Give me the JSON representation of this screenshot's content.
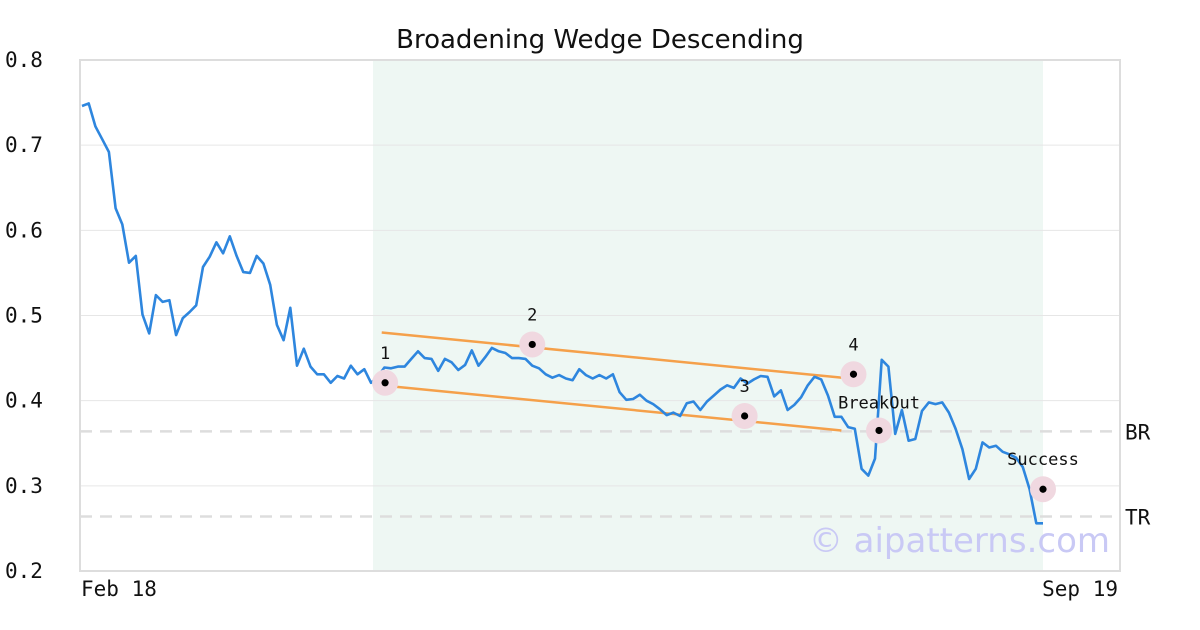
{
  "chart_data": {
    "type": "line",
    "title": "Broadening Wedge Descending",
    "xlabel": "",
    "ylabel": "",
    "ylim": [
      0.2,
      0.8
    ],
    "y_ticks": [
      "0.2",
      "0.3",
      "0.4",
      "0.5",
      "0.6",
      "0.7",
      "0.8"
    ],
    "x_tick_labels": [
      "Feb 18",
      "Sep 19"
    ],
    "grid": true,
    "colors": {
      "line": "#2e86de",
      "trend": "#f5a04a",
      "pattern_band": "#eef7f3",
      "marker_halo": "#f0d8e0",
      "level": "#dddddd",
      "watermark": "#c9c9f5"
    },
    "series": [
      {
        "values": [
          0.746,
          0.749,
          0.722,
          0.707,
          0.692,
          0.626,
          0.607,
          0.562,
          0.57,
          0.501,
          0.479,
          0.524,
          0.516,
          0.518,
          0.477,
          0.497,
          0.504,
          0.512,
          0.557,
          0.569,
          0.586,
          0.573,
          0.593,
          0.57,
          0.551,
          0.55,
          0.57,
          0.561,
          0.536,
          0.489,
          0.471,
          0.509,
          0.441,
          0.461,
          0.44,
          0.431,
          0.431,
          0.421,
          0.429,
          0.426,
          0.441,
          0.431,
          0.437,
          0.421,
          0.428,
          0.439,
          0.438,
          0.44,
          0.44,
          0.449,
          0.458,
          0.45,
          0.449,
          0.435,
          0.449,
          0.445,
          0.436,
          0.442,
          0.459,
          0.441,
          0.451,
          0.462,
          0.458,
          0.456,
          0.45,
          0.45,
          0.449,
          0.441,
          0.438,
          0.431,
          0.427,
          0.43,
          0.426,
          0.424,
          0.437,
          0.43,
          0.426,
          0.43,
          0.426,
          0.431,
          0.41,
          0.401,
          0.402,
          0.407,
          0.4,
          0.396,
          0.39,
          0.383,
          0.386,
          0.382,
          0.397,
          0.399,
          0.389,
          0.399,
          0.406,
          0.413,
          0.418,
          0.415,
          0.426,
          0.42,
          0.425,
          0.429,
          0.428,
          0.405,
          0.412,
          0.389,
          0.395,
          0.404,
          0.418,
          0.428,
          0.425,
          0.406,
          0.381,
          0.381,
          0.369,
          0.367,
          0.32,
          0.312,
          0.332,
          0.448,
          0.44,
          0.361,
          0.389,
          0.353,
          0.355,
          0.388,
          0.398,
          0.396,
          0.398,
          0.386,
          0.367,
          0.343,
          0.308,
          0.32,
          0.351,
          0.345,
          0.347,
          0.34,
          0.337,
          0.333,
          0.322,
          0.296,
          0.256,
          0.256
        ]
      }
    ],
    "upper_trendline": [
      [
        0.48,
        0.427
      ]
    ],
    "lower_trendline": [
      [
        0.418,
        0.365
      ]
    ],
    "levels": [
      {
        "label": "BR",
        "value": 0.364
      },
      {
        "label": "TR",
        "value": 0.264
      }
    ],
    "annotations": [
      {
        "label": "1",
        "value": 0.421
      },
      {
        "label": "2",
        "value": 0.466
      },
      {
        "label": "3",
        "value": 0.382
      },
      {
        "label": "4",
        "value": 0.431
      },
      {
        "label": "BreakOut",
        "value": 0.365
      },
      {
        "label": "Success",
        "value": 0.296
      }
    ],
    "watermark": "© aipatterns.com"
  }
}
